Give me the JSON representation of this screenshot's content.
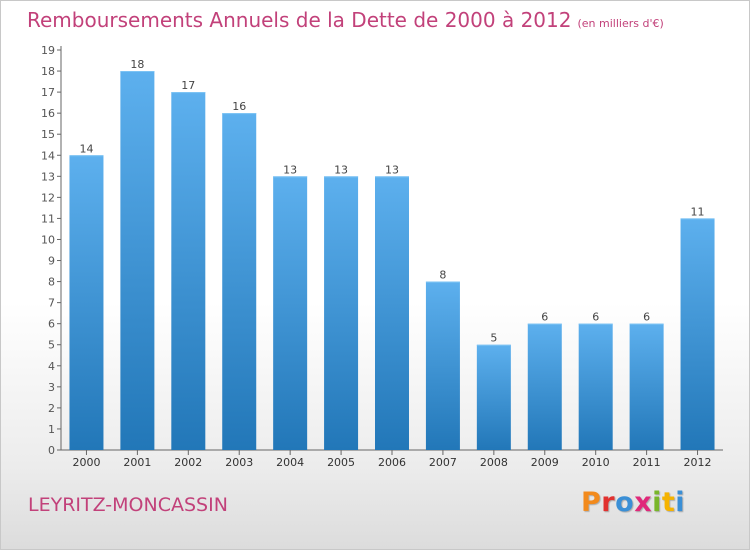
{
  "title": "Remboursements Annuels de la Dette de 2000 à 2012",
  "subtitle": "(en milliers d'€)",
  "place": "LEYRITZ-MONCASSIN",
  "logo": {
    "text": "Proxiti",
    "colors": [
      "#f28a1c",
      "#e1312f",
      "#3a8fd6",
      "#e0287a",
      "#79b62a",
      "#f5b301",
      "#3a8fd6"
    ]
  },
  "colors": {
    "title": "#c2417a",
    "bar_top": "#5db0ee",
    "bar_bottom": "#2277b8",
    "axis": "#555555"
  },
  "chart_data": {
    "type": "bar",
    "categories": [
      "2000",
      "2001",
      "2002",
      "2003",
      "2004",
      "2005",
      "2006",
      "2007",
      "2008",
      "2009",
      "2010",
      "2011",
      "2012"
    ],
    "values": [
      14,
      18,
      17,
      16,
      13,
      13,
      13,
      8,
      5,
      6,
      6,
      6,
      11
    ],
    "data_labels": [
      "14",
      "18",
      "17",
      "16",
      "13",
      "13",
      "13",
      "8",
      "5",
      "6",
      "6",
      "6",
      "11"
    ],
    "y_ticks": [
      "0",
      "1",
      "2",
      "3",
      "4",
      "5",
      "6",
      "7",
      "8",
      "9",
      "10",
      "11",
      "12",
      "13",
      "14",
      "15",
      "16",
      "17",
      "18",
      "19"
    ],
    "ylim": [
      0,
      19
    ],
    "grid": false,
    "xlabel": "",
    "ylabel": ""
  }
}
